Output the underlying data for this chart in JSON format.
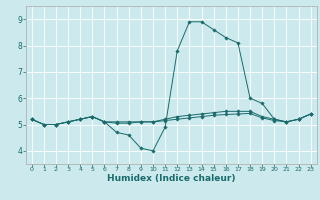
{
  "title": "",
  "xlabel": "Humidex (Indice chaleur)",
  "ylabel": "",
  "xlim": [
    -0.5,
    23.5
  ],
  "ylim": [
    3.5,
    9.5
  ],
  "yticks": [
    4,
    5,
    6,
    7,
    8,
    9
  ],
  "xticks": [
    0,
    1,
    2,
    3,
    4,
    5,
    6,
    7,
    8,
    9,
    10,
    11,
    12,
    13,
    14,
    15,
    16,
    17,
    18,
    19,
    20,
    21,
    22,
    23
  ],
  "bg_color": "#cce9ed",
  "line_color": "#1a6b6b",
  "grid_color": "#ffffff",
  "lines": [
    {
      "x": [
        0,
        1,
        2,
        3,
        4,
        5,
        6,
        7,
        8,
        9,
        10,
        11,
        12,
        13,
        14,
        15,
        16,
        17,
        18,
        19,
        20,
        21,
        22,
        23
      ],
      "y": [
        5.2,
        5.0,
        5.0,
        5.1,
        5.2,
        5.3,
        5.1,
        4.7,
        4.6,
        4.1,
        4.0,
        4.9,
        7.8,
        8.9,
        8.9,
        8.6,
        8.3,
        8.1,
        6.0,
        5.8,
        5.2,
        5.1,
        5.2,
        5.4
      ]
    },
    {
      "x": [
        0,
        1,
        2,
        3,
        4,
        5,
        6,
        7,
        8,
        9,
        10,
        11,
        12,
        13,
        14,
        15,
        16,
        17,
        18,
        19,
        20,
        21,
        22,
        23
      ],
      "y": [
        5.2,
        5.0,
        5.0,
        5.1,
        5.2,
        5.3,
        5.1,
        5.1,
        5.1,
        5.1,
        5.1,
        5.2,
        5.3,
        5.35,
        5.4,
        5.45,
        5.5,
        5.5,
        5.5,
        5.3,
        5.2,
        5.1,
        5.2,
        5.4
      ]
    },
    {
      "x": [
        0,
        1,
        2,
        3,
        4,
        5,
        6,
        7,
        8,
        9,
        10,
        11,
        12,
        13,
        14,
        15,
        16,
        17,
        18,
        19,
        20,
        21,
        22,
        23
      ],
      "y": [
        5.2,
        5.0,
        5.0,
        5.1,
        5.2,
        5.3,
        5.1,
        5.05,
        5.05,
        5.1,
        5.1,
        5.15,
        5.2,
        5.25,
        5.3,
        5.35,
        5.38,
        5.4,
        5.42,
        5.25,
        5.15,
        5.1,
        5.2,
        5.4
      ]
    }
  ]
}
